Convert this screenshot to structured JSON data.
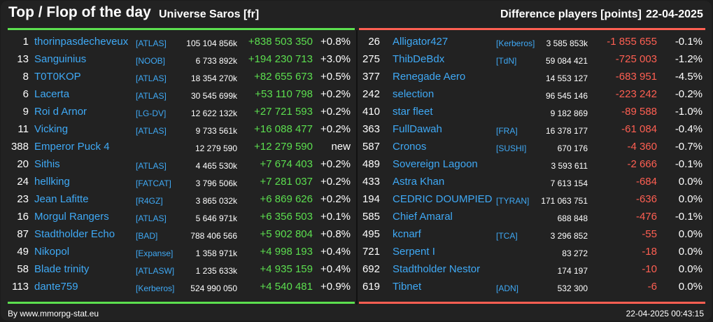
{
  "header": {
    "title": "Top / Flop of the day",
    "universe": "Universe Saros [fr]",
    "difference_label": "Difference players [points]",
    "date": "22-04-2025"
  },
  "colors": {
    "top": "#5cdf4f",
    "flop": "#ff5f52",
    "link": "#3fa9f5",
    "background": "#222222"
  },
  "top": [
    {
      "rank": "1",
      "name": "thorinpasdecheveux",
      "tag": "[ATLAS]",
      "points": "105 104 856k",
      "diff": "+838 503 350",
      "pct": "+0.8%"
    },
    {
      "rank": "13",
      "name": "Sanguinius",
      "tag": "[NOOB]",
      "points": "6 733 892k",
      "diff": "+194 230 713",
      "pct": "+3.0%"
    },
    {
      "rank": "8",
      "name": "T0T0KOP",
      "tag": "[ATLAS]",
      "points": "18 354 270k",
      "diff": "+82 655 673",
      "pct": "+0.5%"
    },
    {
      "rank": "6",
      "name": "Lacerta",
      "tag": "[ATLAS]",
      "points": "30 545 699k",
      "diff": "+53 110 798",
      "pct": "+0.2%"
    },
    {
      "rank": "9",
      "name": "Roi d Arnor",
      "tag": "[LG-DV]",
      "points": "12 622 132k",
      "diff": "+27 721 593",
      "pct": "+0.2%"
    },
    {
      "rank": "11",
      "name": "Vicking",
      "tag": "[ATLAS]",
      "points": "9 733 561k",
      "diff": "+16 088 477",
      "pct": "+0.2%"
    },
    {
      "rank": "388",
      "name": "Emperor Puck 4",
      "tag": "",
      "points": "12 279 590",
      "diff": "+12 279 590",
      "pct": "new"
    },
    {
      "rank": "20",
      "name": "Sithis",
      "tag": "[ATLAS]",
      "points": "4 465 530k",
      "diff": "+7 674 403",
      "pct": "+0.2%"
    },
    {
      "rank": "24",
      "name": "hellking",
      "tag": "[FATCAT]",
      "points": "3 796 506k",
      "diff": "+7 281 037",
      "pct": "+0.2%"
    },
    {
      "rank": "23",
      "name": "Jean Lafitte",
      "tag": "[R4GZ]",
      "points": "3 865 032k",
      "diff": "+6 869 626",
      "pct": "+0.2%"
    },
    {
      "rank": "16",
      "name": "Morgul Rangers",
      "tag": "[ATLAS]",
      "points": "5 646 971k",
      "diff": "+6 356 503",
      "pct": "+0.1%"
    },
    {
      "rank": "87",
      "name": "Stadtholder Echo",
      "tag": "[BAD]",
      "points": "788 406 566",
      "diff": "+5 902 804",
      "pct": "+0.8%"
    },
    {
      "rank": "49",
      "name": "Nikopol",
      "tag": "[Expanse]",
      "points": "1 358 971k",
      "diff": "+4 998 193",
      "pct": "+0.4%"
    },
    {
      "rank": "58",
      "name": "Blade trinity",
      "tag": "[ATLASW]",
      "points": "1 235 633k",
      "diff": "+4 935 159",
      "pct": "+0.4%"
    },
    {
      "rank": "113",
      "name": "dante759",
      "tag": "[Kerberos]",
      "points": "524 990 050",
      "diff": "+4 540 481",
      "pct": "+0.9%"
    }
  ],
  "flop": [
    {
      "rank": "26",
      "name": "Alligator427",
      "tag": "[Kerberos]",
      "points": "3 585 853k",
      "diff": "-1 855 655",
      "pct": "-0.1%"
    },
    {
      "rank": "275",
      "name": "ThibDeBdx",
      "tag": "[TdN]",
      "points": "59 084 421",
      "diff": "-725 003",
      "pct": "-1.2%"
    },
    {
      "rank": "377",
      "name": "Renegade Aero",
      "tag": "",
      "points": "14 553 127",
      "diff": "-683 951",
      "pct": "-4.5%"
    },
    {
      "rank": "242",
      "name": "selection",
      "tag": "",
      "points": "96 545 146",
      "diff": "-223 242",
      "pct": "-0.2%"
    },
    {
      "rank": "410",
      "name": "star fleet",
      "tag": "",
      "points": "9 182 869",
      "diff": "-89 588",
      "pct": "-1.0%"
    },
    {
      "rank": "363",
      "name": "FullDawah",
      "tag": "[FRA]",
      "points": "16 378 177",
      "diff": "-61 084",
      "pct": "-0.4%"
    },
    {
      "rank": "587",
      "name": "Cronos",
      "tag": "[SUSHI]",
      "points": "670 176",
      "diff": "-4 360",
      "pct": "-0.7%"
    },
    {
      "rank": "489",
      "name": "Sovereign Lagoon",
      "tag": "",
      "points": "3 593 611",
      "diff": "-2 666",
      "pct": "-0.1%"
    },
    {
      "rank": "433",
      "name": "Astra Khan",
      "tag": "",
      "points": "7 613 154",
      "diff": "-684",
      "pct": "0.0%"
    },
    {
      "rank": "194",
      "name": "CEDRIC DOUMPIED",
      "tag": "[TYRAN]",
      "points": "171 063 751",
      "diff": "-636",
      "pct": "0.0%"
    },
    {
      "rank": "585",
      "name": "Chief Amaral",
      "tag": "",
      "points": "688 848",
      "diff": "-476",
      "pct": "-0.1%"
    },
    {
      "rank": "495",
      "name": "kcnarf",
      "tag": "[TCA]",
      "points": "3 296 852",
      "diff": "-55",
      "pct": "0.0%"
    },
    {
      "rank": "721",
      "name": "Serpent I",
      "tag": "",
      "points": "83 272",
      "diff": "-18",
      "pct": "0.0%"
    },
    {
      "rank": "692",
      "name": "Stadtholder Nestor",
      "tag": "",
      "points": "174 197",
      "diff": "-10",
      "pct": "0.0%"
    },
    {
      "rank": "619",
      "name": "Tibnet",
      "tag": "[ADN]",
      "points": "532 300",
      "diff": "-6",
      "pct": "0.0%"
    }
  ],
  "footer": {
    "source": "By www.mmorpg-stat.eu",
    "timestamp": "22-04-2025 00:43:15"
  }
}
